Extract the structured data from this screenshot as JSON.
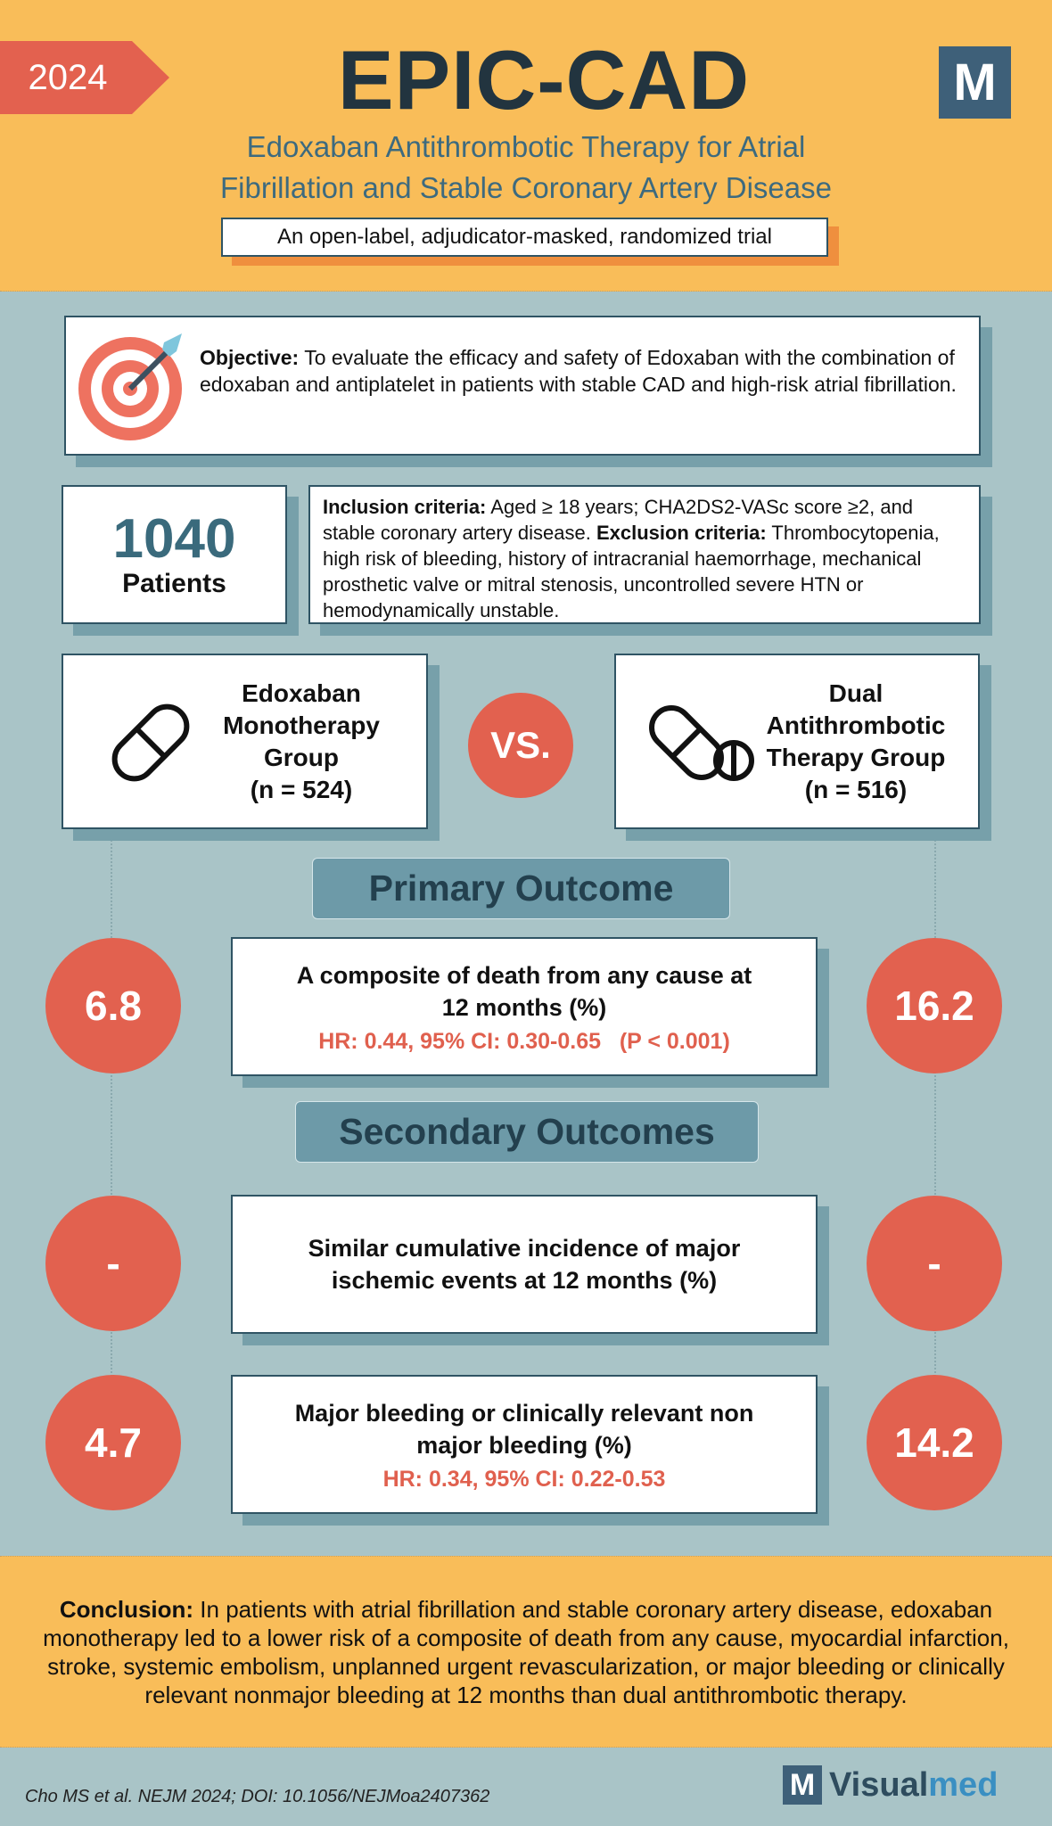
{
  "header": {
    "year": 2024,
    "title": "EPIC-CAD",
    "logo_letter": "M",
    "subtitle_lines": [
      "Edoxaban Antithrombotic Therapy for Atrial",
      "Fibrillation and Stable Coronary Artery Disease"
    ],
    "design": "An open-label, adjudicator-masked, randomized trial"
  },
  "objective": {
    "label": "Objective:",
    "text": "To evaluate the efficacy and safety of Edoxaban with the combination of edoxaban and antiplatelet in patients with stable CAD and high-risk atrial fibrillation."
  },
  "patients": {
    "count": 1040,
    "label": "Patients"
  },
  "criteria": {
    "inclusion_label": "Inclusion criteria:",
    "inclusion_text": "Aged ≥ 18 years; CHA2DS2-VASc score ≥2, and stable coronary artery disease.",
    "exclusion_label": "Exclusion criteria:",
    "exclusion_text": "Thrombocytopenia, high risk of bleeding, history of intracranial haemorrhage, mechanical prosthetic valve or mitral stenosis, uncontrolled severe HTN or hemodynamically unstable."
  },
  "groups": [
    {
      "name": "Edoxaban Monotherapy Group",
      "n": "(n = 524)"
    },
    {
      "name": "Dual Antithrombotic Therapy Group",
      "n": "(n = 516)"
    }
  ],
  "vs": "VS.",
  "primary": {
    "heading": "Primary Outcome",
    "title": "A composite of death from any cause at 12 months (%)",
    "stats": "HR: 0.44, 95% CI: 0.30-0.65   (P < 0.001)",
    "left": 6.8,
    "right": 16.2
  },
  "secondary": {
    "heading": "Secondary Outcomes",
    "outcomes": [
      {
        "title": "Similar cumulative incidence of major ischemic events at 12 months (%)",
        "left": "-",
        "right": "-"
      },
      {
        "title": "Major bleeding or clinically relevant non major bleeding (%)",
        "stats": "HR: 0.34, 95% CI: 0.22-0.53",
        "left": 4.7,
        "right": 14.2
      }
    ]
  },
  "conclusion": {
    "label": "Conclusion:",
    "text": "In patients with atrial fibrillation and stable coronary artery disease, edoxaban monotherapy led to a lower risk of a composite of death from any cause, myocardial infarction, stroke, systemic embolism, unplanned urgent revascularization, or major bleeding or clinically relevant nonmajor bleeding at 12 months than dual antithrombotic therapy."
  },
  "footer": {
    "citation": "Cho MS et al. NEJM 2024; DOI: 10.1056/NEJMoa2407362",
    "logo_letter": "M",
    "brand_part1": "Visual",
    "brand_part2": "med"
  }
}
